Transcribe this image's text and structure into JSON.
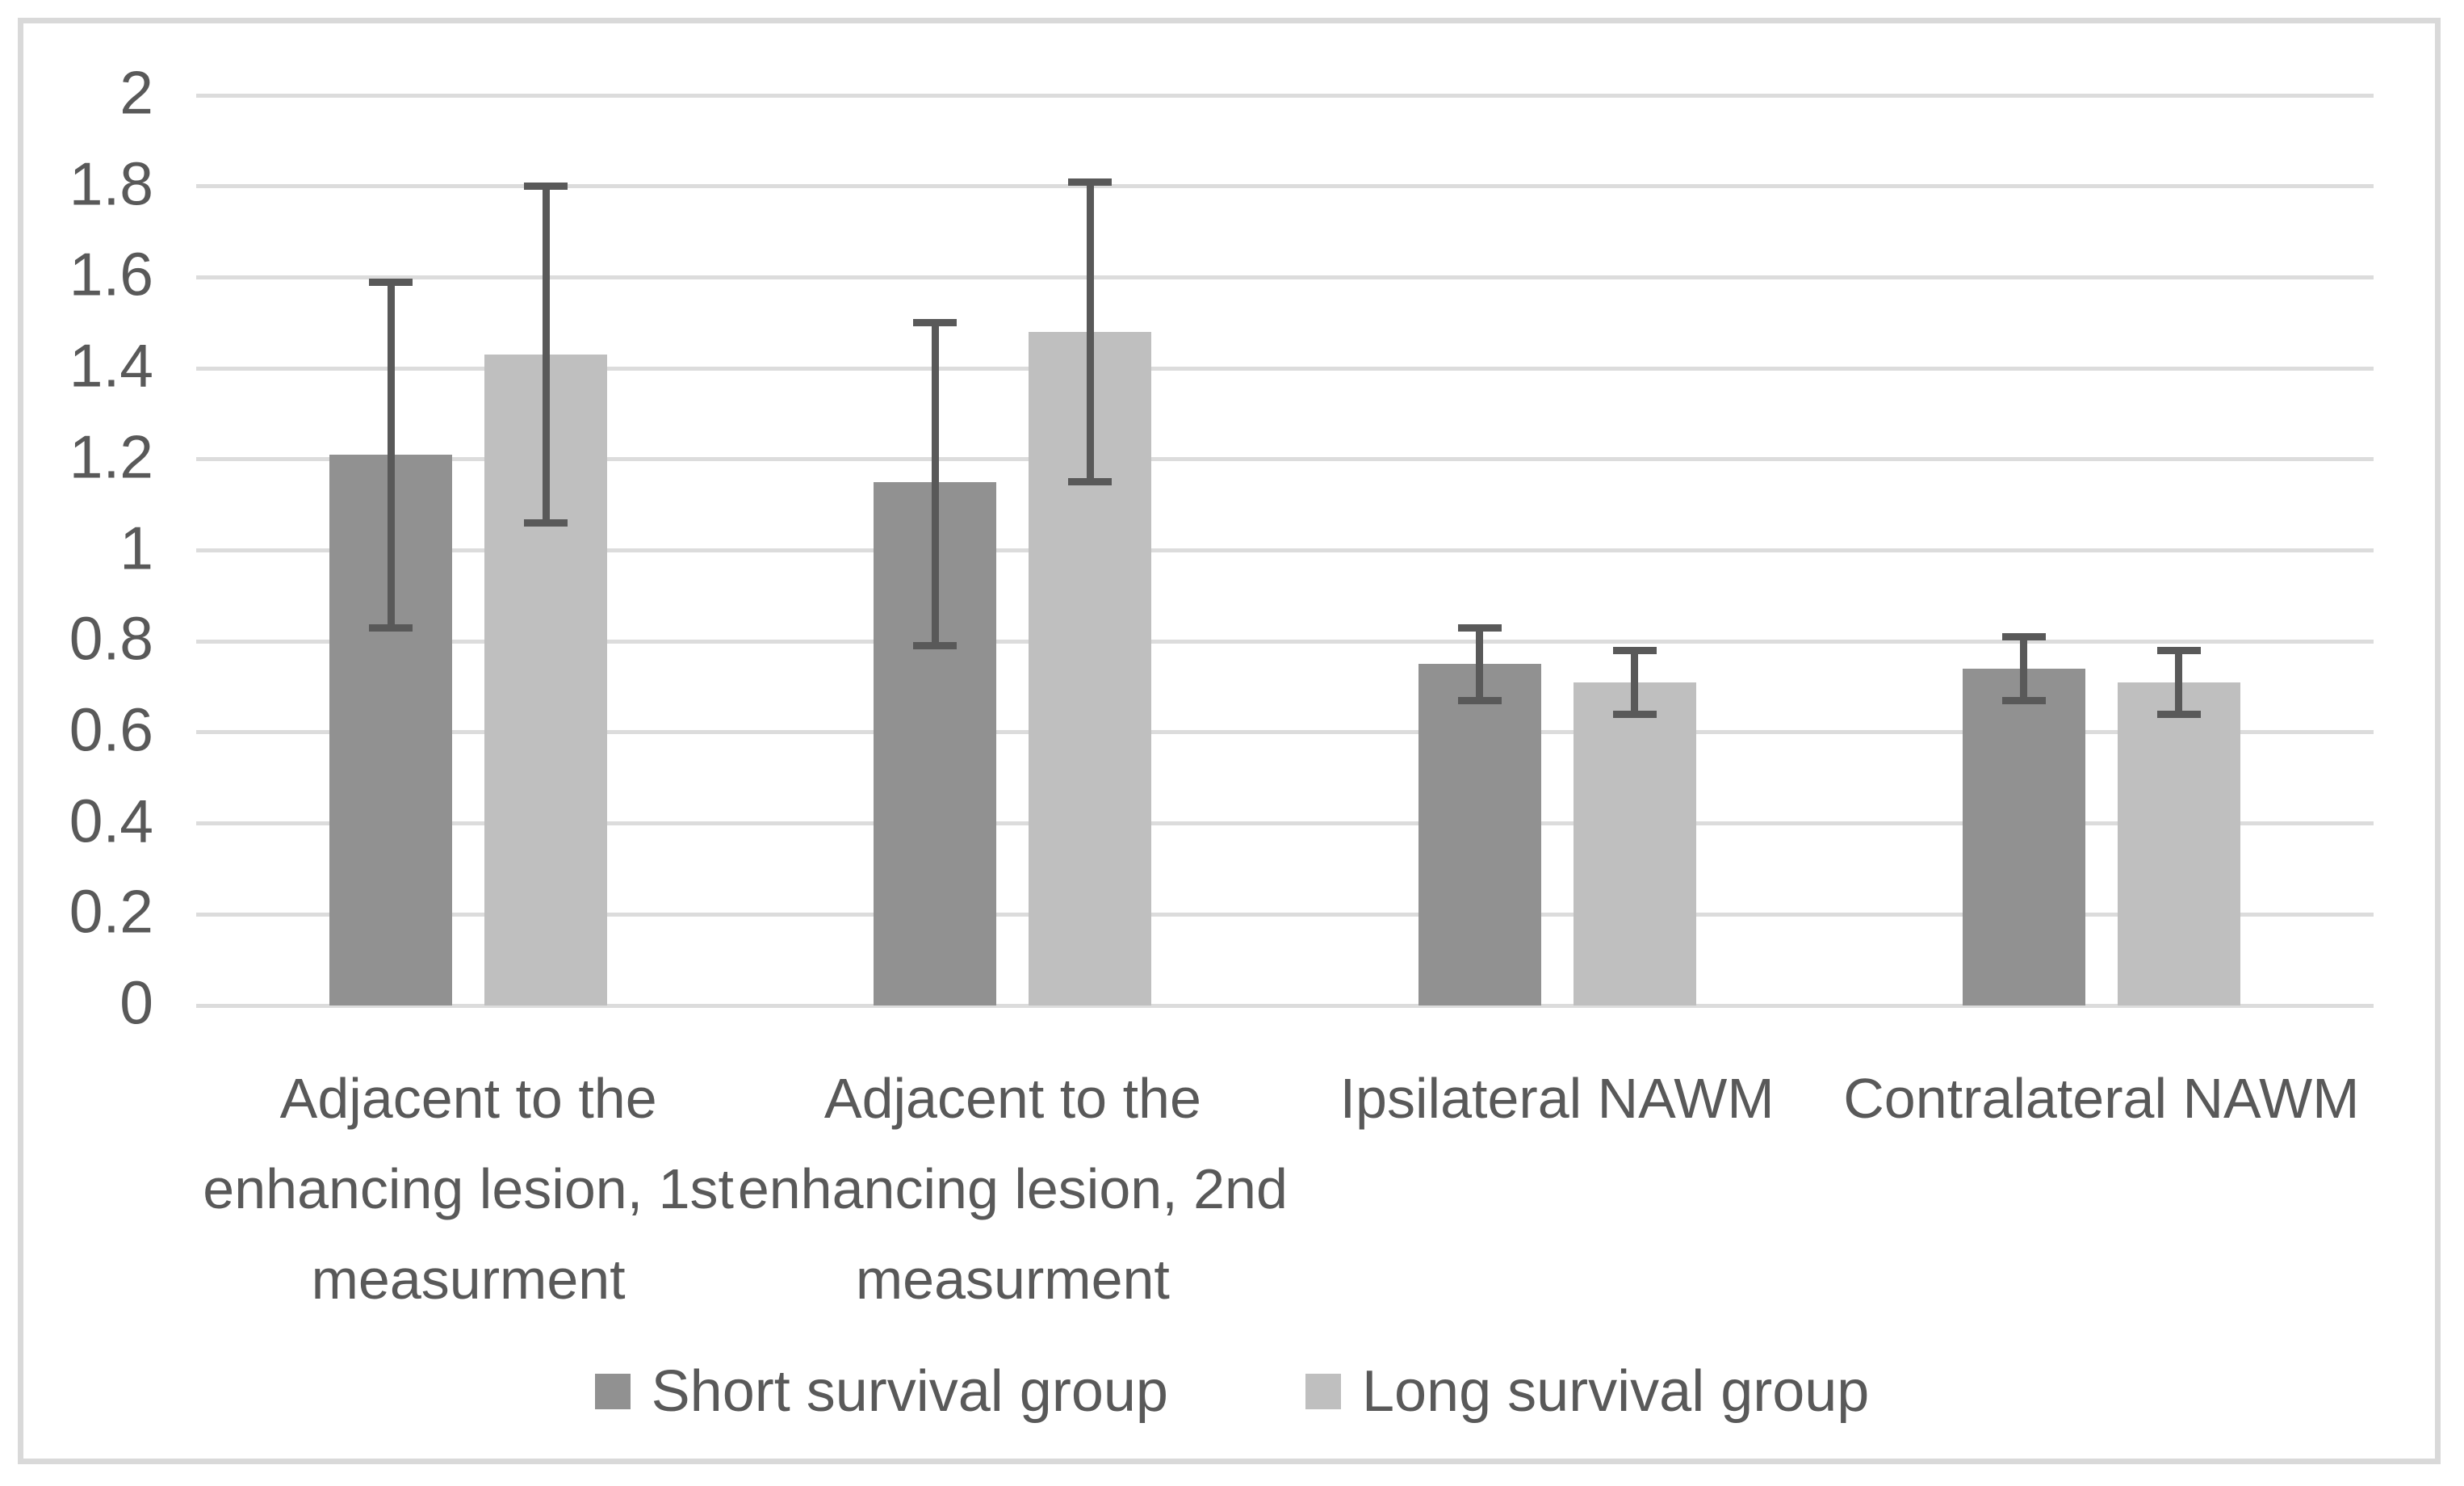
{
  "chart_data": {
    "type": "bar",
    "title": "",
    "xlabel": "",
    "ylabel": "",
    "categories": [
      "Adjacent to the\nenhancing lesion, 1st\nmeasurment",
      "Adjacent to the\nenhancing lesion, 2nd\nmeasurment",
      "Ipsilateral NAWM",
      "Contralateral NAWM"
    ],
    "series": [
      {
        "name": "Short survival group",
        "color": "#919191",
        "values": [
          1.21,
          1.15,
          0.75,
          0.74
        ],
        "error_low": [
          0.83,
          0.79,
          0.67,
          0.67
        ],
        "error_high": [
          1.59,
          1.5,
          0.83,
          0.81
        ]
      },
      {
        "name": "Long survival group",
        "color": "#bfbfbf",
        "values": [
          1.43,
          1.48,
          0.71,
          0.71
        ],
        "error_low": [
          1.06,
          1.15,
          0.64,
          0.64
        ],
        "error_high": [
          1.8,
          1.81,
          0.78,
          0.78
        ]
      }
    ],
    "y_axis": {
      "min": 0,
      "max": 2,
      "tick_step": 0.2,
      "tick_labels": [
        "2",
        "1.8",
        "1.6",
        "1.4",
        "1.2",
        "1",
        "0.8",
        "0.6",
        "0.4",
        "0.2",
        "0"
      ]
    },
    "grid": true,
    "legend_position": "bottom",
    "colors": {
      "error_bar": "#595959",
      "gridline": "#dcdcdc",
      "text": "#595959",
      "border": "#d9d9d9",
      "background": "#ffffff"
    }
  }
}
